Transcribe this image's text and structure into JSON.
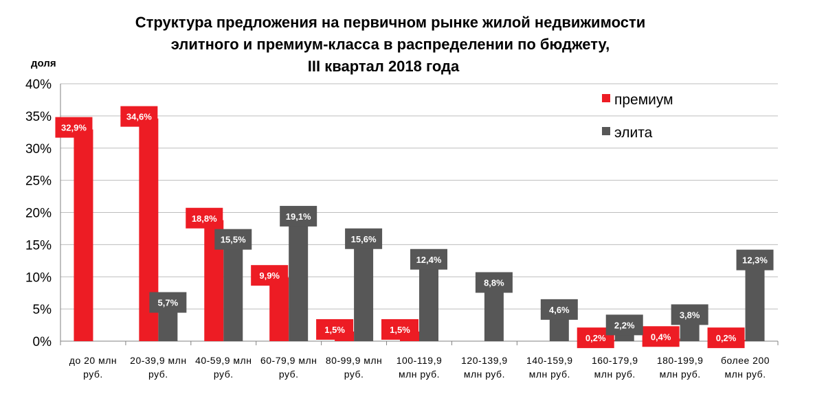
{
  "chart_data": {
    "type": "bar",
    "title_lines": [
      "Структура  предложения на первичном рынке жилой недвижимости",
      "элитного  и премиум-класса  в распределении по бюджету,",
      "III квартал 2018  года"
    ],
    "ylabel": "доля",
    "xlabel": "",
    "ylim": [
      0,
      40
    ],
    "y_ticks": [
      "0%",
      "5%",
      "10%",
      "15%",
      "20%",
      "25%",
      "30%",
      "35%",
      "40%"
    ],
    "grid": true,
    "legend_position": "top-right",
    "categories": [
      [
        "до 20 млн",
        "руб."
      ],
      [
        "20-39,9 млн",
        "руб."
      ],
      [
        "40-59,9 млн",
        "руб."
      ],
      [
        "60-79,9 млн",
        "руб."
      ],
      [
        "80-99,9 млн",
        "руб."
      ],
      [
        "100-119,9",
        "млн руб."
      ],
      [
        "120-139,9",
        "млн руб."
      ],
      [
        "140-159,9",
        "млн руб."
      ],
      [
        "160-179,9",
        "млн руб."
      ],
      [
        "180-199,9",
        "млн руб."
      ],
      [
        "более 200",
        "млн руб."
      ]
    ],
    "series": [
      {
        "name": "премиум",
        "color": "#ed1c24",
        "values": [
          32.9,
          34.6,
          18.8,
          9.9,
          1.5,
          1.5,
          null,
          null,
          0.2,
          0.4,
          0.2
        ],
        "labels": [
          "32,9%",
          "34,6%",
          "18,8%",
          "9,9%",
          "1,5%",
          "1,5%",
          "",
          "",
          "0,2%",
          "0,4%",
          "0,2%"
        ]
      },
      {
        "name": "элита",
        "color": "#575757",
        "values": [
          null,
          5.7,
          15.5,
          19.1,
          15.6,
          12.4,
          8.8,
          4.6,
          2.2,
          3.8,
          12.3
        ],
        "labels": [
          "",
          "5,7%",
          "15,5%",
          "19,1%",
          "15,6%",
          "12,4%",
          "8,8%",
          "4,6%",
          "2,2%",
          "3,8%",
          "12,3%"
        ]
      }
    ]
  }
}
